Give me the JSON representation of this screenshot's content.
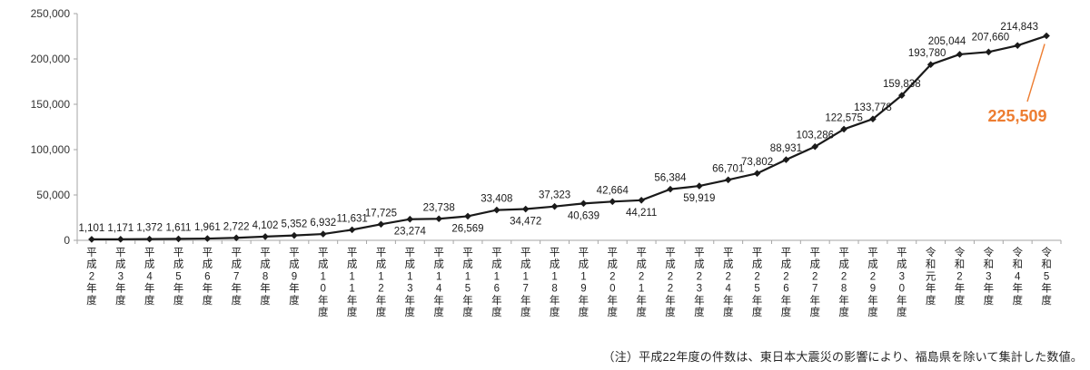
{
  "chart_data": {
    "type": "line",
    "title": "",
    "xlabel": "",
    "ylabel": "",
    "ylim": [
      0,
      250000
    ],
    "ytick_labels": [
      "0",
      "50,000",
      "100,000",
      "150,000",
      "200,000",
      "250,000"
    ],
    "grid": false,
    "legend": "none",
    "categories": [
      "平成2年度",
      "平成3年度",
      "平成4年度",
      "平成5年度",
      "平成6年度",
      "平成7年度",
      "平成8年度",
      "平成9年度",
      "平成10年度",
      "平成11年度",
      "平成12年度",
      "平成13年度",
      "平成14年度",
      "平成15年度",
      "平成16年度",
      "平成17年度",
      "平成18年度",
      "平成19年度",
      "平成20年度",
      "平成21年度",
      "平成22年度",
      "平成23年度",
      "平成24年度",
      "平成25年度",
      "平成26年度",
      "平成27年度",
      "平成28年度",
      "平成29年度",
      "平成30年度",
      "令和元年度",
      "令和2年度",
      "令和3年度",
      "令和4年度",
      "令和5年度"
    ],
    "values": [
      1101,
      1171,
      1372,
      1611,
      1961,
      2722,
      4102,
      5352,
      6932,
      11631,
      17725,
      23274,
      23738,
      26569,
      33408,
      34472,
      37323,
      40639,
      42664,
      44211,
      56384,
      59919,
      66701,
      73802,
      88931,
      103286,
      122575,
      133778,
      159838,
      193780,
      205044,
      207660,
      214843,
      225509
    ],
    "label_positions": [
      "above",
      "above",
      "above",
      "above",
      "above",
      "above",
      "above",
      "above",
      "above",
      "above",
      "above",
      "below",
      "above",
      "below",
      "above",
      "below",
      "above",
      "below",
      "above",
      "below",
      "above",
      "below",
      "above",
      "above",
      "above",
      "above",
      "above",
      "above",
      "above",
      "above",
      "above",
      "above",
      "above",
      "callout"
    ],
    "highlight": {
      "label": "225,509",
      "color": "#ED7D31"
    },
    "line_color": "#1a1a1a",
    "marker": "diamond"
  },
  "note": "（注）平成22年度の件数は、東日本大震災の影響により、福島県を除いて集計した数値。"
}
